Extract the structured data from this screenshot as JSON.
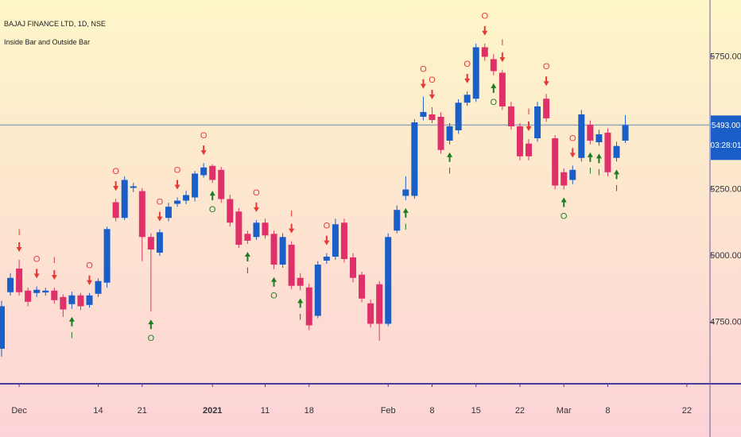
{
  "chart_data": {
    "type": "candlestick",
    "title": "BAJAJ FINANCE LTD, 1D, NSE",
    "subtitle": "Inside Bar and Outside Bar",
    "categories": [
      null,
      null,
      "Dec",
      null,
      null,
      null,
      null,
      null,
      null,
      null,
      null,
      "14",
      null,
      null,
      null,
      null,
      "21",
      null,
      null,
      null,
      null,
      null,
      null,
      null,
      "2021",
      null,
      null,
      null,
      null,
      null,
      "11",
      null,
      null,
      null,
      null,
      "18",
      null,
      null,
      null,
      null,
      null,
      null,
      null,
      null,
      "Feb",
      null,
      null,
      null,
      null,
      "8",
      null,
      null,
      null,
      null,
      "15",
      null,
      null,
      null,
      null,
      "22",
      null,
      null,
      null,
      null,
      "Mar",
      null,
      null,
      null,
      null,
      "8",
      null,
      null,
      null,
      null,
      null,
      null,
      null,
      null,
      "22",
      null,
      null
    ],
    "open": [
      4650,
      4863,
      4952,
      4869,
      4860,
      4862,
      4869,
      4845,
      4818,
      4851,
      4815,
      4857,
      4899,
      5202,
      5143,
      5256,
      5244,
      5071,
      5012,
      5143,
      5196,
      5208,
      5220,
      5304,
      5339,
      5324,
      5214,
      5167,
      5083,
      5071,
      5125,
      5083,
      4967,
      5042,
      4917,
      4881,
      4774,
      4982,
      4997,
      5125,
      4994,
      4929,
      4821,
      4893,
      4744,
      5095,
      5226,
      5226,
      5524,
      5533,
      5524,
      5434,
      5473,
      5577,
      5592,
      5786,
      5741,
      5690,
      5563,
      5488,
      5423,
      5443,
      5592,
      5443,
      5315,
      5286,
      5369,
      5494,
      5428,
      5464,
      5369,
      5434,
      null,
      null,
      null,
      null,
      null,
      null,
      null,
      null,
      null
    ],
    "high": [
      4830,
      4935,
      4985,
      4880,
      4885,
      4880,
      4880,
      4855,
      4865,
      4860,
      4860,
      4915,
      5110,
      5215,
      5300,
      5275,
      5255,
      5085,
      5100,
      5200,
      5220,
      5245,
      5320,
      5350,
      5345,
      5335,
      5230,
      5180,
      5095,
      5135,
      5140,
      5095,
      5085,
      5055,
      4935,
      4895,
      4980,
      5010,
      5140,
      5140,
      5010,
      4940,
      4835,
      4905,
      5085,
      5190,
      5300,
      5515,
      5600,
      5560,
      5540,
      5500,
      5590,
      5620,
      5800,
      5800,
      5760,
      5700,
      5580,
      5500,
      5440,
      5580,
      5610,
      5455,
      5330,
      5340,
      5550,
      5510,
      5475,
      5480,
      5430,
      5530,
      null,
      null,
      null,
      null,
      null,
      null,
      null,
      null,
      null
    ],
    "low": [
      4620,
      4850,
      4850,
      4810,
      4845,
      4850,
      4820,
      4770,
      4800,
      4795,
      4805,
      4845,
      4880,
      5130,
      5135,
      5240,
      4980,
      4790,
      5000,
      5130,
      5185,
      5195,
      5205,
      5295,
      5275,
      5200,
      5110,
      5030,
      5045,
      5060,
      5065,
      4950,
      4955,
      4875,
      4870,
      4720,
      4765,
      4970,
      4985,
      4975,
      4900,
      4825,
      4730,
      4680,
      4735,
      5085,
      5210,
      5215,
      5510,
      5500,
      5385,
      5420,
      5460,
      5565,
      5580,
      5735,
      5680,
      5550,
      5475,
      5360,
      5360,
      5430,
      5505,
      5250,
      5250,
      5270,
      5355,
      5420,
      5415,
      5300,
      5355,
      5425,
      null,
      null,
      null,
      null,
      null,
      null,
      null,
      null,
      null
    ],
    "close": [
      4810,
      4917,
      4863,
      4827,
      4872,
      4869,
      4833,
      4798,
      4851,
      4810,
      4851,
      4905,
      5101,
      5143,
      5286,
      5262,
      5071,
      5024,
      5089,
      5185,
      5208,
      5229,
      5310,
      5333,
      5286,
      5214,
      5125,
      5042,
      5057,
      5125,
      5077,
      4967,
      5071,
      4887,
      4887,
      4738,
      4967,
      4997,
      5119,
      4988,
      4917,
      4839,
      4744,
      4744,
      5071,
      5173,
      5250,
      5503,
      5542,
      5512,
      5399,
      5488,
      5577,
      5607,
      5786,
      5750,
      5696,
      5563,
      5488,
      5375,
      5375,
      5563,
      5518,
      5265,
      5265,
      5324,
      5533,
      5434,
      5458,
      5315,
      5414,
      5493,
      null,
      null,
      null,
      null,
      null,
      null,
      null,
      null,
      null
    ],
    "up_color": "#1a5fc8",
    "down_color": "#e0306a",
    "signals": [
      {
        "bar": 2,
        "text": "I",
        "direction": "sell"
      },
      {
        "bar": 4,
        "text": "O",
        "direction": "sell"
      },
      {
        "bar": 6,
        "text": "I",
        "direction": "sell"
      },
      {
        "bar": 10,
        "text": "O",
        "direction": "sell"
      },
      {
        "bar": 13,
        "text": "O",
        "direction": "sell"
      },
      {
        "bar": 18,
        "text": "O",
        "direction": "sell"
      },
      {
        "bar": 20,
        "text": "O",
        "direction": "sell"
      },
      {
        "bar": 23,
        "text": "O",
        "direction": "sell"
      },
      {
        "bar": 29,
        "text": "O",
        "direction": "sell"
      },
      {
        "bar": 33,
        "text": "I",
        "direction": "sell"
      },
      {
        "bar": 37,
        "text": "O",
        "direction": "sell"
      },
      {
        "bar": 48,
        "text": "O",
        "direction": "sell"
      },
      {
        "bar": 49,
        "text": "O",
        "direction": "sell"
      },
      {
        "bar": 53,
        "text": "O",
        "direction": "sell"
      },
      {
        "bar": 55,
        "text": "O",
        "direction": "sell"
      },
      {
        "bar": 57,
        "text": "I",
        "direction": "sell"
      },
      {
        "bar": 60,
        "text": "I",
        "direction": "sell"
      },
      {
        "bar": 62,
        "text": "O",
        "direction": "sell"
      },
      {
        "bar": 65,
        "text": "O",
        "direction": "sell"
      },
      {
        "bar": 8,
        "text": "I",
        "direction": "buy"
      },
      {
        "bar": 17,
        "text": "O",
        "direction": "buy"
      },
      {
        "bar": 24,
        "text": "O",
        "direction": "buy"
      },
      {
        "bar": 28,
        "text": "I",
        "direction": "buy"
      },
      {
        "bar": 31,
        "text": "O",
        "direction": "buy"
      },
      {
        "bar": 34,
        "text": "I",
        "direction": "buy"
      },
      {
        "bar": 46,
        "text": "I",
        "direction": "buy"
      },
      {
        "bar": 51,
        "text": "I",
        "direction": "buy"
      },
      {
        "bar": 56,
        "text": "O",
        "direction": "buy"
      },
      {
        "bar": 64,
        "text": "O",
        "direction": "buy"
      },
      {
        "bar": 67,
        "text": "I",
        "direction": "buy"
      },
      {
        "bar": 68,
        "text": "I",
        "direction": "buy"
      },
      {
        "bar": 70,
        "text": "I",
        "direction": "buy"
      }
    ],
    "sell_color": "#e53935",
    "buy_color": "#1e7d22",
    "ylim": [
      4518,
      5964
    ],
    "yticks": [
      {
        "value": 4750,
        "label": "4750.00"
      },
      {
        "value": 5000,
        "label": "5000.00"
      },
      {
        "value": 5250,
        "label": "5250.00"
      },
      {
        "value": 5750,
        "label": "5750.00"
      }
    ],
    "last_price": {
      "value": 5493,
      "label": "5493.00"
    },
    "countdown": "03:28:01"
  }
}
